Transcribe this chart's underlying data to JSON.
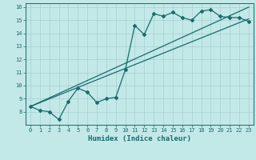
{
  "title": "",
  "xlabel": "Humidex (Indice chaleur)",
  "ylabel": "",
  "bg_color": "#c2e8e8",
  "line_color": "#1a6b6b",
  "grid_color": "#a8d0d0",
  "xlim": [
    -0.5,
    23.5
  ],
  "ylim": [
    7,
    16.3
  ],
  "xticks": [
    0,
    1,
    2,
    3,
    4,
    5,
    6,
    7,
    8,
    9,
    10,
    11,
    12,
    13,
    14,
    15,
    16,
    17,
    18,
    19,
    20,
    21,
    22,
    23
  ],
  "yticks": [
    8,
    9,
    10,
    11,
    12,
    13,
    14,
    15,
    16
  ],
  "series1_x": [
    0,
    1,
    2,
    3,
    4,
    5,
    6,
    7,
    8,
    9,
    10,
    11,
    12,
    13,
    14,
    15,
    16,
    17,
    18,
    19,
    20,
    21,
    22,
    23
  ],
  "series1_y": [
    8.4,
    8.1,
    8.0,
    7.4,
    8.8,
    9.8,
    9.5,
    8.7,
    9.0,
    9.1,
    11.2,
    14.6,
    13.9,
    15.5,
    15.3,
    15.6,
    15.2,
    15.0,
    15.7,
    15.8,
    15.3,
    15.2,
    15.2,
    14.9
  ],
  "series2_x": [
    0,
    23
  ],
  "series2_y": [
    8.4,
    16.0
  ],
  "series3_x": [
    0,
    23
  ],
  "series3_y": [
    8.4,
    15.1
  ]
}
